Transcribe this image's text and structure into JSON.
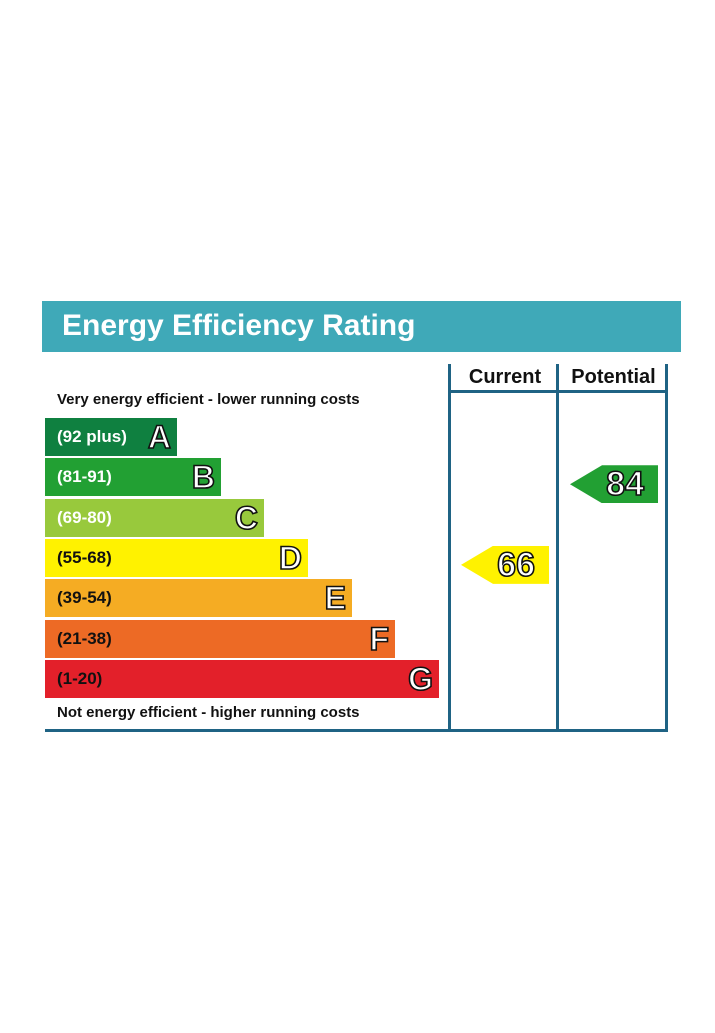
{
  "chart_data": {
    "type": "bar",
    "title": "Energy Efficiency Rating",
    "top_caption": "Very energy efficient - lower running costs",
    "bottom_caption": "Not energy efficient - higher running costs",
    "columns": [
      "Current",
      "Potential"
    ],
    "bands": [
      {
        "range": "(92 plus)",
        "letter": "A",
        "color": "#0f8040",
        "text_color": "#ffffff"
      },
      {
        "range": "(81-91)",
        "letter": "B",
        "color": "#22a033",
        "text_color": "#ffffff"
      },
      {
        "range": "(69-80)",
        "letter": "C",
        "color": "#98c93c",
        "text_color": "#ffffff"
      },
      {
        "range": "(55-68)",
        "letter": "D",
        "color": "#fff200",
        "text_color": "#111111"
      },
      {
        "range": "(39-54)",
        "letter": "E",
        "color": "#f5ac23",
        "text_color": "#111111"
      },
      {
        "range": "(21-38)",
        "letter": "F",
        "color": "#ed6a25",
        "text_color": "#111111"
      },
      {
        "range": "(1-20)",
        "letter": "G",
        "color": "#e3202a",
        "text_color": "#111111"
      }
    ],
    "current": {
      "value": "66",
      "band": "D",
      "color": "#fff200"
    },
    "potential": {
      "value": "84",
      "band": "B",
      "color": "#22a033"
    }
  },
  "colors": {
    "title_bar": "#3fa9b8",
    "frame": "#1f6384"
  }
}
